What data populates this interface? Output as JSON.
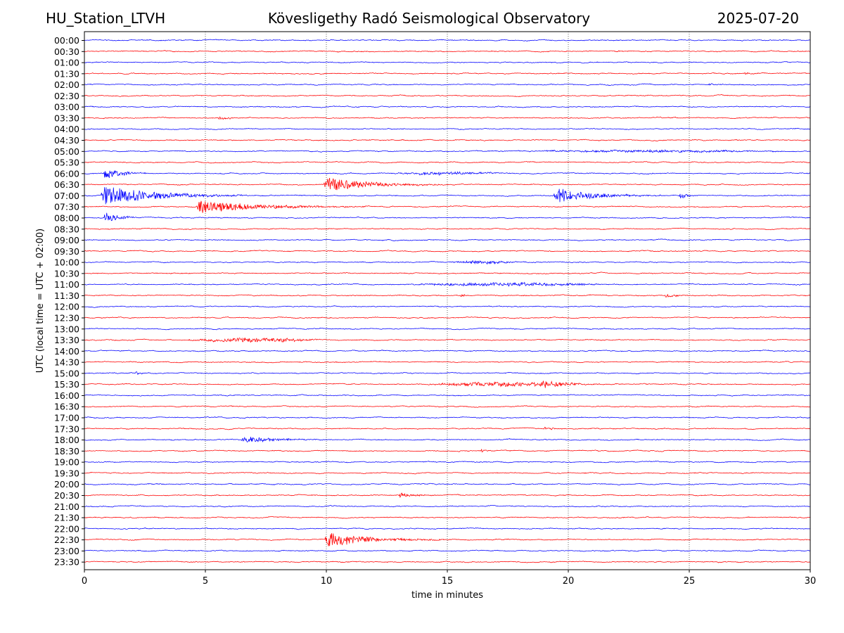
{
  "header": {
    "station": "HU_Station_LTVH",
    "title": "Kövesligethy Radó Seismological Observatory",
    "date": "2025-07-20"
  },
  "chart_data": {
    "type": "line",
    "xlabel": "time in minutes",
    "ylabel": "UTC (local time = UTC + 02:00)",
    "xlim": [
      0,
      30
    ],
    "x_ticks": [
      "0",
      "5",
      "10",
      "15",
      "20",
      "25",
      "30"
    ],
    "x_tick_values": [
      0,
      5,
      10,
      15,
      20,
      25,
      30
    ],
    "gridlines": "vertical dotted at 5, 10, 15, 20, 25",
    "trace_colors": [
      "#0000ff",
      "#ff0000"
    ],
    "row_labels": [
      "00:00",
      "00:30",
      "01:00",
      "01:30",
      "02:00",
      "02:30",
      "03:00",
      "03:30",
      "04:00",
      "04:30",
      "05:00",
      "05:30",
      "06:00",
      "06:30",
      "07:00",
      "07:30",
      "08:00",
      "08:30",
      "09:00",
      "09:30",
      "10:00",
      "10:30",
      "11:00",
      "11:30",
      "12:00",
      "12:30",
      "13:00",
      "13:30",
      "14:00",
      "14:30",
      "15:00",
      "15:30",
      "16:00",
      "16:30",
      "17:00",
      "17:30",
      "18:00",
      "18:30",
      "19:00",
      "19:30",
      "20:00",
      "20:30",
      "21:00",
      "21:30",
      "22:00",
      "22:30",
      "23:00",
      "23:30"
    ],
    "events": [
      {
        "row": 14,
        "start": 0.7,
        "amp": 2.2,
        "dur": 6.0,
        "type": "quake"
      },
      {
        "row": 14,
        "start": 19.4,
        "amp": 1.6,
        "dur": 4.5,
        "type": "quake"
      },
      {
        "row": 14,
        "start": 24.6,
        "amp": 0.6,
        "dur": 1.0,
        "type": "quake"
      },
      {
        "row": 15,
        "start": 4.6,
        "amp": 1.4,
        "dur": 7.0,
        "type": "quake"
      },
      {
        "row": 13,
        "start": 9.9,
        "amp": 1.5,
        "dur": 5.0,
        "type": "quake"
      },
      {
        "row": 12,
        "start": 0.8,
        "amp": 1.3,
        "dur": 2.0,
        "type": "quake"
      },
      {
        "row": 16,
        "start": 0.8,
        "amp": 1.4,
        "dur": 1.5,
        "type": "quake"
      },
      {
        "row": 45,
        "start": 9.95,
        "amp": 1.6,
        "dur": 5.0,
        "type": "quake"
      },
      {
        "row": 36,
        "start": 6.5,
        "amp": 0.8,
        "dur": 3.5,
        "type": "quake"
      },
      {
        "row": 31,
        "start": 18.8,
        "amp": 0.7,
        "dur": 3.0,
        "type": "quake"
      },
      {
        "row": 41,
        "start": 13.0,
        "amp": 0.5,
        "dur": 2.0,
        "type": "quake"
      },
      {
        "row": 23,
        "start": 15.5,
        "amp": 0.5,
        "dur": 0.6,
        "type": "quake"
      },
      {
        "row": 23,
        "start": 24.0,
        "amp": 0.4,
        "dur": 1.5,
        "type": "quake"
      },
      {
        "row": 27,
        "start": 8.1,
        "amp": 0.6,
        "dur": 1.5,
        "type": "quake"
      },
      {
        "row": 30,
        "start": 2.1,
        "amp": 0.4,
        "dur": 0.5,
        "type": "quake"
      },
      {
        "row": 37,
        "start": 16.4,
        "amp": 0.4,
        "dur": 0.5,
        "type": "quake"
      },
      {
        "row": 35,
        "start": 19.0,
        "amp": 0.4,
        "dur": 1.0,
        "type": "quake"
      },
      {
        "row": 3,
        "start": 27.2,
        "amp": 0.35,
        "dur": 1.0,
        "type": "quake"
      },
      {
        "row": 4,
        "start": 25.8,
        "amp": 0.35,
        "dur": 0.6,
        "type": "quake"
      },
      {
        "row": 1,
        "start": 21.9,
        "amp": 0.25,
        "dur": 0.8,
        "type": "quake"
      },
      {
        "row": 7,
        "start": 5.5,
        "amp": 0.3,
        "dur": 1.5,
        "type": "quake"
      },
      {
        "row": 31,
        "start": 14.0,
        "amp": 0.4,
        "dur": 7.0,
        "type": "noise"
      },
      {
        "row": 22,
        "start": 13.0,
        "amp": 0.3,
        "dur": 9.0,
        "type": "noise"
      },
      {
        "row": 27,
        "start": 4.0,
        "amp": 0.35,
        "dur": 6.0,
        "type": "noise"
      },
      {
        "row": 20,
        "start": 15.0,
        "amp": 0.3,
        "dur": 3.0,
        "type": "noise"
      },
      {
        "row": 12,
        "start": 12.5,
        "amp": 0.25,
        "dur": 5.0,
        "type": "noise"
      },
      {
        "row": 10,
        "start": 17.5,
        "amp": 0.2,
        "dur": 12.0,
        "type": "noise"
      }
    ]
  }
}
